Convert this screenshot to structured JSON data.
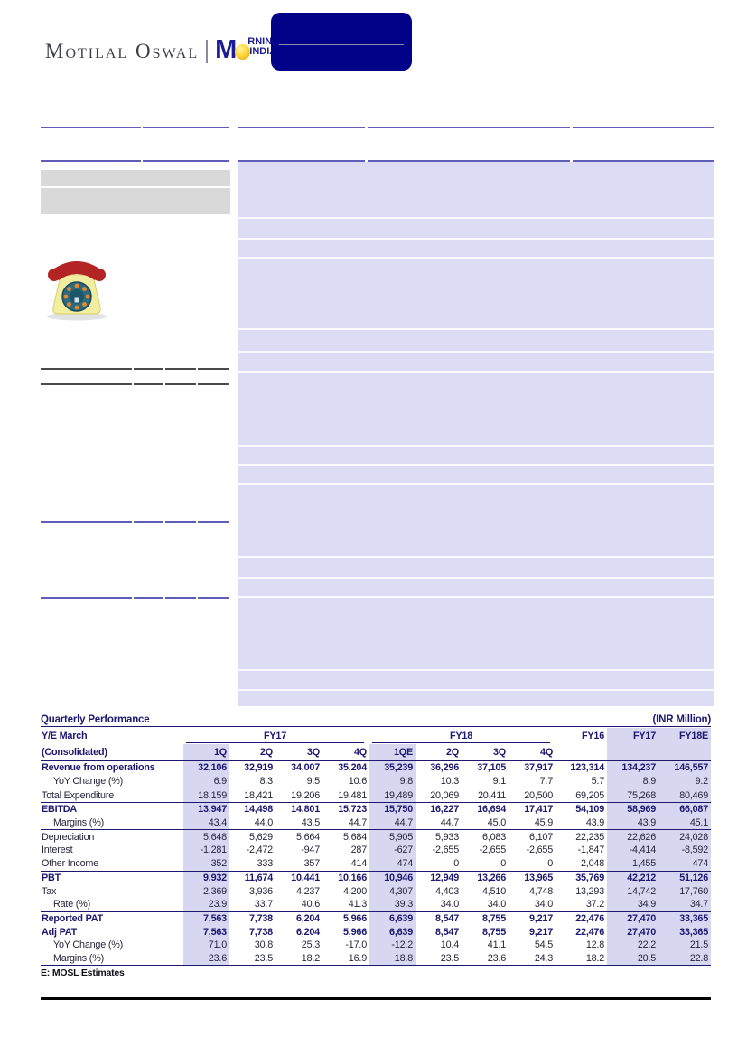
{
  "logo": {
    "wordmark": "Motilal Oswal",
    "sub_m": "M",
    "sub_rning": "RNING",
    "sub_india": "INDIA"
  },
  "colors": {
    "banner_navy": "#020288",
    "table_navy": "#1c1870",
    "highlight_lavender": "#d7d7f2",
    "panel_lavender": "#dcdcf5",
    "rule_purple": "#5e5eb8"
  },
  "table": {
    "title": "Quarterly Performance",
    "unit_label": "(INR Million)",
    "left_header_top": "Y/E March",
    "left_header_bottom": "(Consolidated)",
    "group_headers": [
      "FY17",
      "FY18"
    ],
    "quarter_headers": [
      "1Q",
      "2Q",
      "3Q",
      "4Q",
      "1QE",
      "2Q",
      "3Q",
      "4Q"
    ],
    "annual_headers": [
      "FY16",
      "FY17",
      "FY18E"
    ],
    "highlight_quarter_cols": [
      0,
      4
    ],
    "highlight_annual_cols": [
      1,
      2
    ],
    "rows": [
      {
        "label": "Revenue from operations",
        "style": "bold",
        "values": [
          "32,106",
          "32,919",
          "34,007",
          "35,204",
          "35,239",
          "36,296",
          "37,105",
          "37,917",
          "123,314",
          "134,237",
          "146,557"
        ]
      },
      {
        "label": "YoY Change (%)",
        "style": "indent",
        "border_bottom": true,
        "values": [
          "6.9",
          "8.3",
          "9.5",
          "10.6",
          "9.8",
          "10.3",
          "9.1",
          "7.7",
          "5.7",
          "8.9",
          "9.2"
        ]
      },
      {
        "label": "Total Expenditure",
        "style": "normal",
        "border_bottom": true,
        "values": [
          "18,159",
          "18,421",
          "19,206",
          "19,481",
          "19,489",
          "20,069",
          "20,411",
          "20,500",
          "69,205",
          "75,268",
          "80,469"
        ]
      },
      {
        "label": "EBITDA",
        "style": "bold",
        "values": [
          "13,947",
          "14,498",
          "14,801",
          "15,723",
          "15,750",
          "16,227",
          "16,694",
          "17,417",
          "54,109",
          "58,969",
          "66,087"
        ]
      },
      {
        "label": "Margins (%)",
        "style": "indent",
        "border_bottom": true,
        "values": [
          "43.4",
          "44.0",
          "43.5",
          "44.7",
          "44.7",
          "44.7",
          "45.0",
          "45.9",
          "43.9",
          "43.9",
          "45.1"
        ]
      },
      {
        "label": "Depreciation",
        "style": "normal",
        "values": [
          "5,648",
          "5,629",
          "5,664",
          "5,684",
          "5,905",
          "5,933",
          "6,083",
          "6,107",
          "22,235",
          "22,626",
          "24,028"
        ]
      },
      {
        "label": "Interest",
        "style": "normal",
        "values": [
          "-1,281",
          "-2,472",
          "-947",
          "287",
          "-627",
          "-2,655",
          "-2,655",
          "-2,655",
          "-1,847",
          "-4,414",
          "-8,592"
        ]
      },
      {
        "label": "Other Income",
        "style": "normal",
        "border_bottom": true,
        "values": [
          "352",
          "333",
          "357",
          "414",
          "474",
          "0",
          "0",
          "0",
          "2,048",
          "1,455",
          "474"
        ]
      },
      {
        "label": "PBT",
        "style": "bold",
        "values": [
          "9,932",
          "11,674",
          "10,441",
          "10,166",
          "10,946",
          "12,949",
          "13,266",
          "13,965",
          "35,769",
          "42,212",
          "51,126"
        ]
      },
      {
        "label": "Tax",
        "style": "normal",
        "values": [
          "2,369",
          "3,936",
          "4,237",
          "4,200",
          "4,307",
          "4,403",
          "4,510",
          "4,748",
          "13,293",
          "14,742",
          "17,760"
        ]
      },
      {
        "label": "Rate (%)",
        "style": "indent",
        "border_bottom": true,
        "values": [
          "23.9",
          "33.7",
          "40.6",
          "41.3",
          "39.3",
          "34.0",
          "34.0",
          "34.0",
          "37.2",
          "34.9",
          "34.7"
        ]
      },
      {
        "label": "Reported PAT",
        "style": "bold",
        "values": [
          "7,563",
          "7,738",
          "6,204",
          "5,966",
          "6,639",
          "8,547",
          "8,755",
          "9,217",
          "22,476",
          "27,470",
          "33,365"
        ]
      },
      {
        "label": "Adj PAT",
        "style": "bold",
        "values": [
          "7,563",
          "7,738",
          "6,204",
          "5,966",
          "6,639",
          "8,547",
          "8,755",
          "9,217",
          "22,476",
          "27,470",
          "33,365"
        ]
      },
      {
        "label": "YoY Change (%)",
        "style": "indent",
        "values": [
          "71.0",
          "30.8",
          "25.3",
          "-17.0",
          "-12.2",
          "10.4",
          "41.1",
          "54.5",
          "12.8",
          "22.2",
          "21.5"
        ]
      },
      {
        "label": "Margins (%)",
        "style": "indent",
        "border_bottom": true,
        "values": [
          "23.6",
          "23.5",
          "18.2",
          "16.9",
          "18.8",
          "23.5",
          "23.6",
          "24.3",
          "18.2",
          "20.5",
          "22.8"
        ]
      }
    ],
    "footnote": "E: MOSL Estimates"
  }
}
